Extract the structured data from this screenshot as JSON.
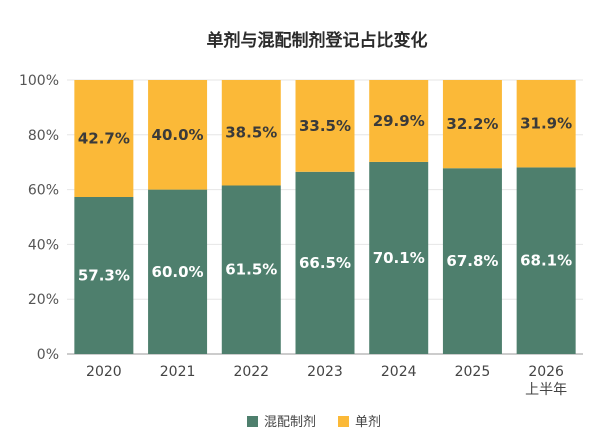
{
  "chart_data": {
    "type": "bar",
    "stacked": true,
    "title": "单剂与混配制剂登记占比变化",
    "categories": [
      "2020",
      "2021",
      "2022",
      "2023",
      "2024",
      "2025",
      "2026\n上半年"
    ],
    "series": [
      {
        "name": "混配制剂",
        "color": "#4e7f6d",
        "values": [
          57.3,
          60.0,
          61.5,
          66.5,
          70.1,
          67.8,
          68.1
        ],
        "labels": [
          "57.3%",
          "60.0%",
          "61.5%",
          "66.5%",
          "70.1%",
          "67.8%",
          "68.1%"
        ]
      },
      {
        "name": "单剂",
        "color": "#fbb938",
        "values": [
          42.7,
          40.0,
          38.5,
          33.5,
          29.9,
          32.2,
          31.9
        ],
        "labels": [
          "42.7%",
          "40.0%",
          "38.5%",
          "33.5%",
          "29.9%",
          "32.2%",
          "31.9%"
        ]
      }
    ],
    "y_ticks": [
      "0%",
      "20%",
      "40%",
      "60%",
      "80%",
      "100%"
    ],
    "ylim": [
      0,
      100
    ],
    "grid": true,
    "legend": "bottom-center"
  }
}
